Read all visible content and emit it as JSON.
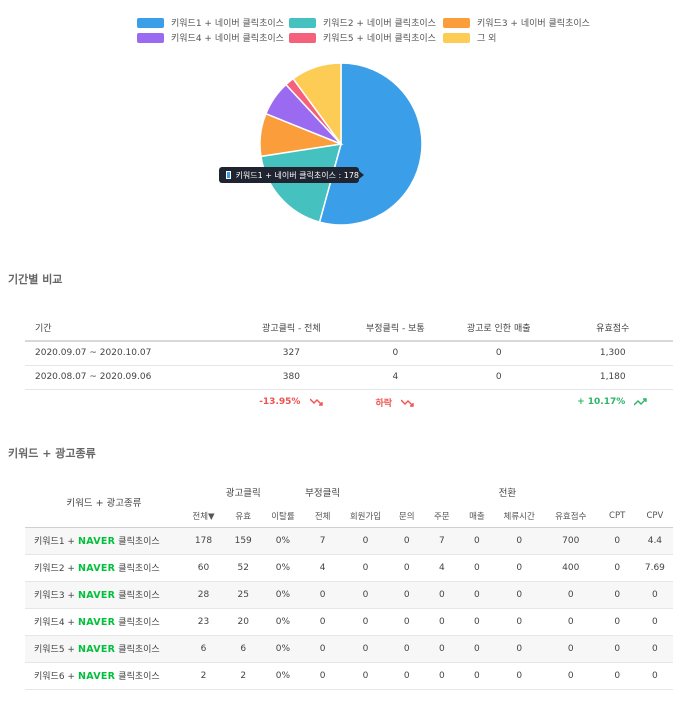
{
  "legend": [
    {
      "label": "키워드1 + 네이버 클릭초이스",
      "color": "#3b9ee8"
    },
    {
      "label": "키워드2 + 네이버 클릭초이스",
      "color": "#45c1bf"
    },
    {
      "label": "키워드3 + 네이버 클릭초이스",
      "color": "#fa9d3a"
    },
    {
      "label": "키워드4 + 네이버 클릭초이스",
      "color": "#9a6bf0"
    },
    {
      "label": "키워드5 + 네이버 클릭초이스",
      "color": "#f5607a"
    },
    {
      "label": "그 외",
      "color": "#fdcc55"
    }
  ],
  "chart_data": {
    "type": "pie",
    "categories": [
      "키워드1 + 네이버 클릭초이스",
      "키워드2 + 네이버 클릭초이스",
      "키워드3 + 네이버 클릭초이스",
      "키워드4 + 네이버 클릭초이스",
      "키워드5 + 네이버 클릭초이스",
      "그 외"
    ],
    "values": [
      178,
      60,
      28,
      23,
      6,
      33
    ],
    "colors": [
      "#3b9ee8",
      "#45c1bf",
      "#fa9d3a",
      "#9a6bf0",
      "#f5607a",
      "#fdcc55"
    ],
    "legend": "top",
    "tooltip": "키워드1 + 네이버 클릭초이스 : 178"
  },
  "period": {
    "title": "기간별 비교",
    "headers": [
      "기간",
      "광고클릭 - 전체",
      "부정클릭 - 보통",
      "광고로 인한 매출",
      "유효점수"
    ],
    "rows": [
      [
        "2020.09.07 ~ 2020.10.07",
        "327",
        "0",
        "0",
        "1,300"
      ],
      [
        "2020.08.07 ~ 2020.09.06",
        "380",
        "4",
        "0",
        "1,180"
      ]
    ],
    "compare": {
      "clicks": "-13.95%",
      "fraud": "하락",
      "score": "+ 10.17%"
    }
  },
  "keywords": {
    "title": "키워드 + 광고종류",
    "head_keyword": "키워드 + 광고종류",
    "groups": {
      "ad_click": "광고클릭",
      "fraud": "부정클릭",
      "conversion": "전환"
    },
    "subheaders": [
      "전체▼",
      "유효",
      "이탈률",
      "전체",
      "회원가입",
      "문의",
      "주문",
      "매출",
      "체류시간",
      "유효점수",
      "CPT",
      "CPV"
    ],
    "naver": "NAVER",
    "ad_type": "클릭초이스",
    "rows": [
      {
        "kw": "키워드1 +",
        "vals": [
          "178",
          "159",
          "0%",
          "7",
          "0",
          "0",
          "7",
          "0",
          "0",
          "700",
          "0",
          "4.4"
        ]
      },
      {
        "kw": "키워드2 +",
        "vals": [
          "60",
          "52",
          "0%",
          "4",
          "0",
          "0",
          "4",
          "0",
          "0",
          "400",
          "0",
          "7.69"
        ]
      },
      {
        "kw": "키워드3 +",
        "vals": [
          "28",
          "25",
          "0%",
          "0",
          "0",
          "0",
          "0",
          "0",
          "0",
          "0",
          "0",
          "0"
        ]
      },
      {
        "kw": "키워드4 +",
        "vals": [
          "23",
          "20",
          "0%",
          "0",
          "0",
          "0",
          "0",
          "0",
          "0",
          "0",
          "0",
          "0"
        ]
      },
      {
        "kw": "키워드5 +",
        "vals": [
          "6",
          "6",
          "0%",
          "0",
          "0",
          "0",
          "0",
          "0",
          "0",
          "0",
          "0",
          "0"
        ]
      },
      {
        "kw": "키워드6 +",
        "vals": [
          "2",
          "2",
          "0%",
          "0",
          "0",
          "0",
          "0",
          "0",
          "0",
          "0",
          "0",
          "0"
        ]
      }
    ]
  }
}
